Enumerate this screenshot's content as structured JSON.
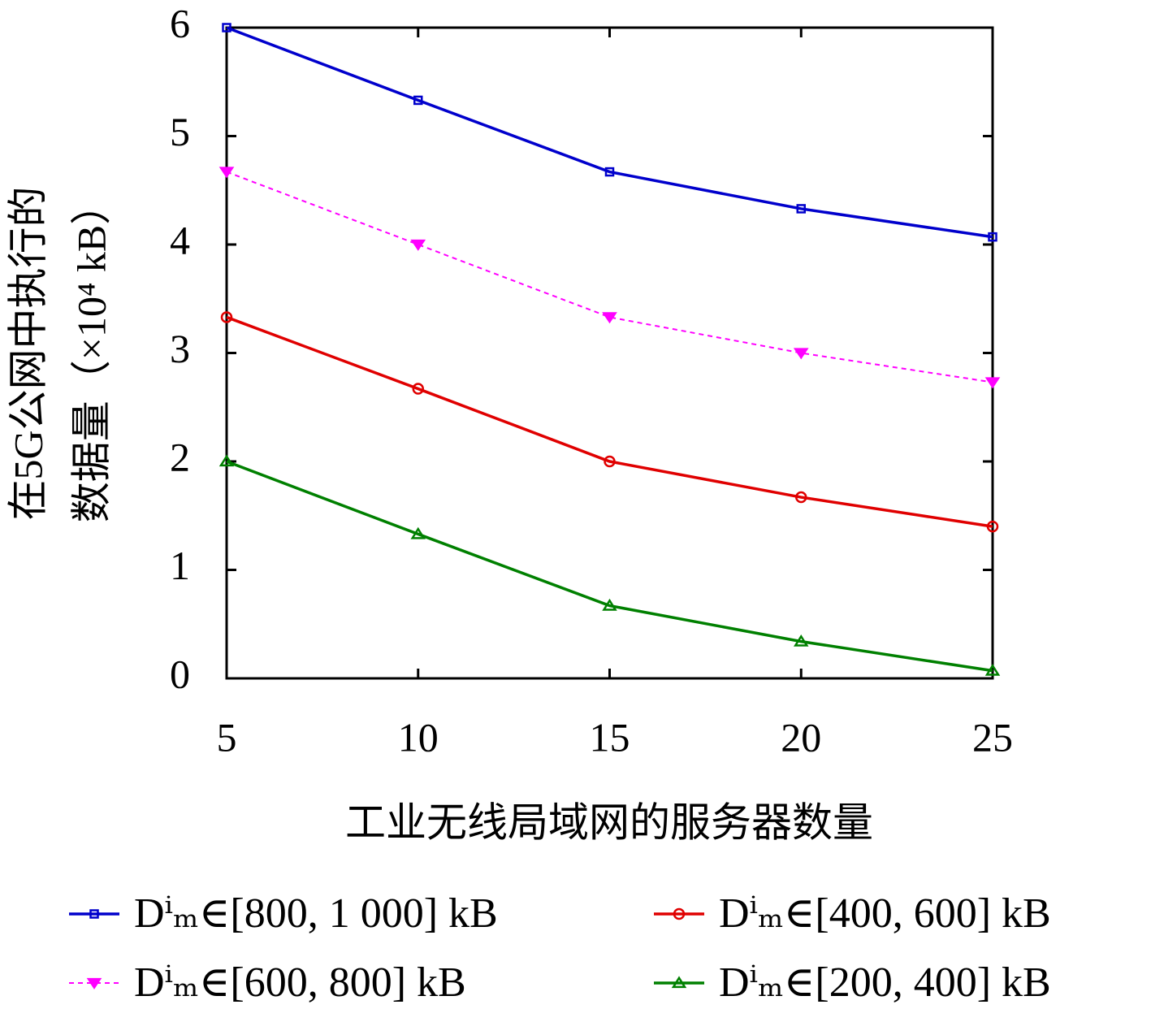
{
  "chart_data": {
    "type": "line",
    "x_label": "工业无线局域网的服务器数量",
    "y_label_lines": [
      "在5G公网中执行的",
      "数据量（×10⁴ kB）"
    ],
    "x": [
      5,
      10,
      15,
      20,
      25
    ],
    "xlim": [
      5,
      25
    ],
    "xticks": [
      5,
      10,
      15,
      20,
      25
    ],
    "ylim": [
      0,
      6
    ],
    "yticks": [
      0,
      1,
      2,
      3,
      4,
      5,
      6
    ],
    "series": [
      {
        "name": "Dⁱₘ∈[800, 1 000] kB",
        "color": "#0000cc",
        "marker": "square",
        "dashed": false,
        "values": [
          6.0,
          5.33,
          4.67,
          4.33,
          4.07
        ]
      },
      {
        "name": "Dⁱₘ∈[600, 800] kB",
        "color": "#ff00ff",
        "marker": "triangle-down",
        "dashed": true,
        "values": [
          4.67,
          4.0,
          3.33,
          3.0,
          2.73
        ]
      },
      {
        "name": "Dⁱₘ∈[400, 600] kB",
        "color": "#e00000",
        "marker": "circle",
        "dashed": false,
        "values": [
          3.33,
          2.67,
          2.0,
          1.67,
          1.4
        ]
      },
      {
        "name": "Dⁱₘ∈[200, 400] kB",
        "color": "#008000",
        "marker": "triangle-up",
        "dashed": false,
        "values": [
          2.0,
          1.33,
          0.67,
          0.34,
          0.07
        ]
      }
    ]
  }
}
